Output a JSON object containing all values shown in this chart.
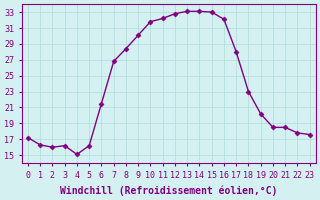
{
  "x": [
    0,
    1,
    2,
    3,
    4,
    5,
    6,
    7,
    8,
    9,
    10,
    11,
    12,
    13,
    14,
    15,
    16,
    17,
    18,
    19,
    20,
    21,
    22,
    23
  ],
  "y": [
    17.2,
    16.3,
    16.0,
    16.2,
    15.1,
    16.2,
    21.5,
    26.8,
    28.4,
    30.1,
    31.8,
    32.2,
    32.8,
    33.1,
    33.1,
    33.0,
    32.1,
    28.0,
    23.0,
    20.2,
    18.5,
    18.5,
    17.8,
    17.6
  ],
  "xlabel": "Windchill (Refroidissement éolien,°C)",
  "line_color": "#800080",
  "marker_color": "#800080",
  "bg_color": "#d4f0f0",
  "grid_color": "#aadddd",
  "tick_color": "#800080",
  "ylim": [
    14,
    34
  ],
  "xlim": [
    -0.5,
    23.5
  ],
  "yticks": [
    15,
    17,
    19,
    21,
    23,
    25,
    27,
    29,
    31,
    33
  ],
  "xticks": [
    0,
    1,
    2,
    3,
    4,
    5,
    6,
    7,
    8,
    9,
    10,
    11,
    12,
    13,
    14,
    15,
    16,
    17,
    18,
    19,
    20,
    21,
    22,
    23
  ],
  "font_size": 6,
  "label_font_size": 7
}
